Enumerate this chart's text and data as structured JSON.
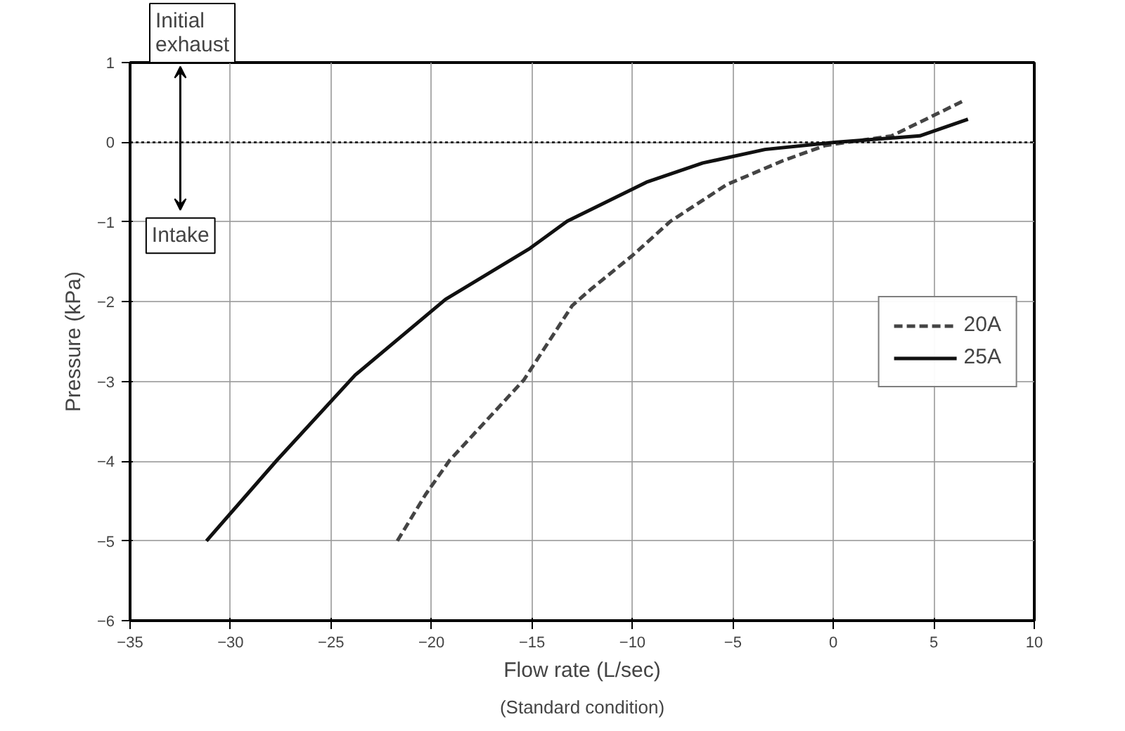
{
  "chart_data": {
    "type": "line",
    "xlabel": "Flow rate (L/sec)",
    "ylabel": "Pressure (kPa)",
    "annotations": [
      "(Standard condition)",
      "Initial\nexhaust",
      "Intake"
    ],
    "xlim": [
      -35,
      10
    ],
    "xticks": [
      -35,
      -30,
      -25,
      -20,
      -15,
      -10,
      -5,
      0,
      5,
      10
    ],
    "ylim": [
      -6,
      1
    ],
    "yticks": [
      -6,
      -5,
      -4,
      -3,
      -2,
      -1,
      0,
      1
    ],
    "grid": true,
    "legend": "right",
    "marker": "none",
    "ref_lines": [
      {
        "axis": "y",
        "value": 0,
        "label": null,
        "line_style": "dotted",
        "color": "#000000"
      }
    ],
    "series": [
      {
        "name": "20A",
        "color": "#444444",
        "line_style": "dashed",
        "x": [
          -21.7,
          -20.3,
          -19.1,
          -15.4,
          -13.0,
          -12.1,
          -10.0,
          -8.1,
          -5.3,
          -2.5,
          -0.4,
          2.9,
          6.4
        ],
        "values": [
          -5.0,
          -4.42,
          -3.99,
          -2.98,
          -2.05,
          -1.85,
          -1.42,
          -0.99,
          -0.53,
          -0.23,
          -0.04,
          0.08,
          0.51
        ]
      },
      {
        "name": "25A",
        "color": "#111111",
        "line_style": "solid",
        "x": [
          -31.2,
          -27.7,
          -23.8,
          -19.3,
          -15.1,
          -13.25,
          -9.3,
          -6.5,
          -3.4,
          0.06,
          4.3,
          6.7
        ],
        "values": [
          -5.0,
          -3.99,
          -2.92,
          -1.97,
          -1.33,
          -0.99,
          -0.5,
          -0.26,
          -0.09,
          0,
          0.08,
          0.29
        ]
      }
    ]
  }
}
